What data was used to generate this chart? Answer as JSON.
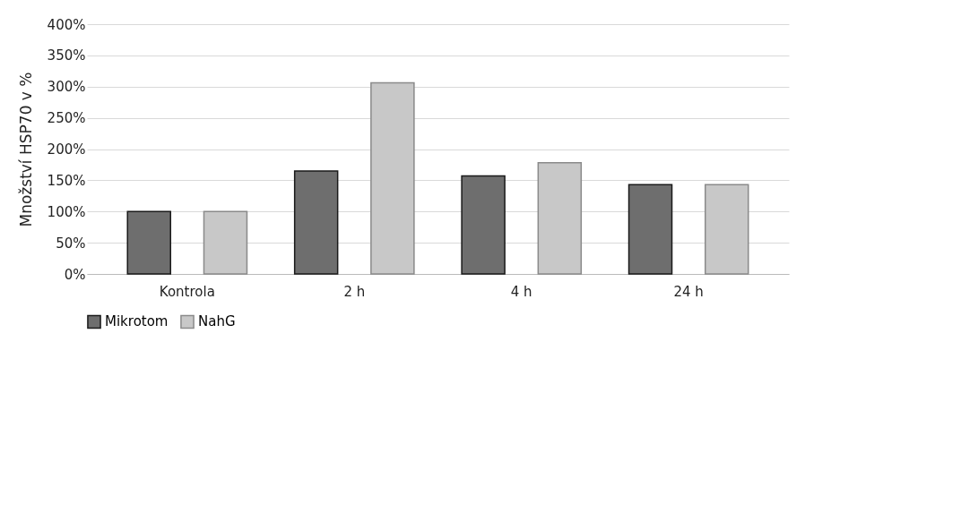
{
  "chart_data": {
    "type": "bar",
    "ylabel": "Množství HSP70 v %",
    "categories": [
      "Kontrola",
      "2 h",
      "4 h",
      "24 h"
    ],
    "series": [
      {
        "name": "Mikrotom",
        "color": "#6e6e6e",
        "values": [
          100,
          165,
          157,
          143
        ]
      },
      {
        "name": "NahG",
        "color": "#c8c8c8",
        "values": [
          100,
          306,
          178,
          143
        ]
      }
    ],
    "ylim": [
      0,
      400
    ],
    "yticks": [
      {
        "value": 0,
        "label": "0%"
      },
      {
        "value": 50,
        "label": "50%"
      },
      {
        "value": 100,
        "label": "100%"
      },
      {
        "value": 150,
        "label": "150%"
      },
      {
        "value": 200,
        "label": "200%"
      },
      {
        "value": 250,
        "label": "250%"
      },
      {
        "value": 300,
        "label": "300%"
      },
      {
        "value": 350,
        "label": "350%"
      },
      {
        "value": 400,
        "label": "400%"
      }
    ],
    "grid": "y",
    "legend": "bottom"
  }
}
